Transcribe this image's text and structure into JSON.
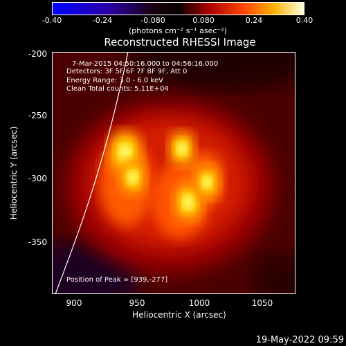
{
  "colorbar": {
    "ticks": [
      "-0.40",
      "-0.24",
      "-0.080",
      "0.080",
      "0.24",
      "0.40"
    ],
    "units": "(photons cm⁻² s⁻¹ asec⁻²)",
    "range": [
      -0.4,
      0.4
    ]
  },
  "plot": {
    "title": "Reconstructed RHESSI Image",
    "info": {
      "line1": "7-Mar-2015 04:50:16.000 to 04:56:16.000",
      "line2": "Detectors: 3F 5F 6F 7F 8F 9F, Att 0",
      "line3": "Energy Range: 3.0 - 6.0 keV",
      "line4": "Clean     Total counts: 5.11E+04",
      "peak": "Position of Peak = [939,-277]"
    },
    "x_ticks": [
      "900",
      "950",
      "1000",
      "1050"
    ],
    "y_ticks": [
      "-200",
      "-250",
      "-300",
      "-350"
    ],
    "x_axis_title": "Heliocentric X (arcsec)",
    "y_axis_title": "Heliocentric Y (arcsec)"
  },
  "chart_data": {
    "type": "heatmap",
    "title": "Reconstructed RHESSI Image",
    "xlabel": "Heliocentric X (arcsec)",
    "ylabel": "Heliocentric Y (arcsec)",
    "xlim": [
      882,
      1075
    ],
    "ylim": [
      -392,
      -197
    ],
    "colorbar_range": [
      -0.4,
      0.4
    ],
    "peak_position": [
      939,
      -277
    ],
    "sources": [
      {
        "x": 940,
        "y": -278,
        "intensity": 0.4
      },
      {
        "x": 946,
        "y": -298,
        "intensity": 0.3
      },
      {
        "x": 990,
        "y": -318,
        "intensity": 0.34
      },
      {
        "x": 985,
        "y": -275,
        "intensity": 0.3
      },
      {
        "x": 1005,
        "y": -302,
        "intensity": 0.28
      }
    ]
  },
  "timestamp": "19-May-2022 09:59",
  "colors": {
    "background": "#000000",
    "text": "#ffffff",
    "colormap": [
      "#0000ff",
      "#1f007f",
      "#000000",
      "#8c0000",
      "#ff3a00",
      "#ffb000",
      "#ffffff"
    ]
  }
}
